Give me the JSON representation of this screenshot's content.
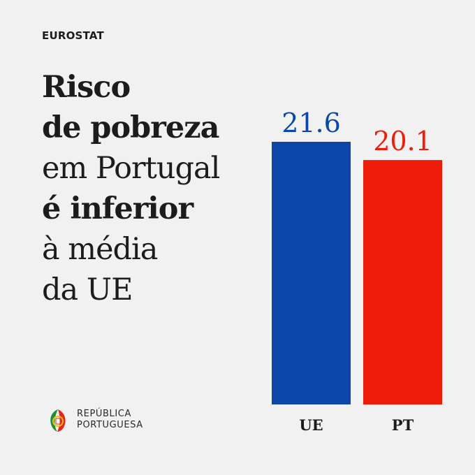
{
  "source": "EUROSTAT",
  "headline": [
    {
      "text": "Risco",
      "weight": "bold"
    },
    {
      "text": "de pobreza",
      "weight": "bold"
    },
    {
      "text": "em Portugal",
      "weight": "light"
    },
    {
      "text": "é inferior",
      "weight": "bold"
    },
    {
      "text": "à média",
      "weight": "light"
    },
    {
      "text": "da UE",
      "weight": "light"
    }
  ],
  "chart_data": {
    "type": "bar",
    "categories": [
      "UE",
      "PT"
    ],
    "values": [
      21.6,
      20.1
    ],
    "value_labels": [
      "21.6",
      "20.1"
    ],
    "colors": [
      "#0a47a9",
      "#ee1c0a"
    ],
    "label_colors": [
      "#0a47a9",
      "#ee1c0a"
    ],
    "title": "Risco de pobreza em Portugal é inferior à média da UE",
    "xlabel": "",
    "ylabel": "",
    "ylim": [
      0,
      21.6
    ],
    "grid": false,
    "legend": "none"
  },
  "logo": {
    "line1": "REPÚBLICA",
    "line2": "PORTUGUESA",
    "icon": "portuguese-republic-emblem-icon",
    "green": "#1a8f3a",
    "red": "#e3261b",
    "yellow": "#f6c400"
  }
}
